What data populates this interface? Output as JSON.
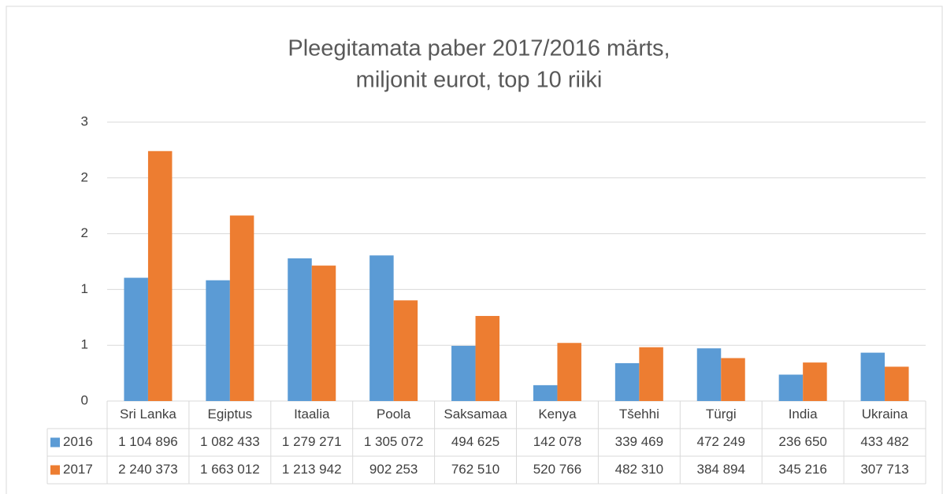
{
  "chart_data": {
    "type": "bar",
    "title": [
      "Pleegitamata paber 2017/2016 märts,",
      "miljonit eurot, top 10 riiki"
    ],
    "categories": [
      "Sri Lanka",
      "Egiptus",
      "Itaalia",
      "Poola",
      "Saksamaa",
      "Kenya",
      "Tšehhi",
      "Türgi",
      "India",
      "Ukraina"
    ],
    "series": [
      {
        "name": "2016",
        "color": "#5b9bd5",
        "values": [
          1.104896,
          1.082433,
          1.279271,
          1.305072,
          0.494625,
          0.142078,
          0.339469,
          0.472249,
          0.23665,
          0.433482
        ],
        "value_labels": [
          "1 104 896",
          "1 082 433",
          "1 279 271",
          "1 305 072",
          "494 625",
          "142 078",
          "339 469",
          "472 249",
          "236 650",
          "433 482"
        ]
      },
      {
        "name": "2017",
        "color": "#ed7d31",
        "values": [
          2.240373,
          1.663012,
          1.213942,
          0.902253,
          0.76251,
          0.520766,
          0.48231,
          0.384894,
          0.345216,
          0.307713
        ],
        "value_labels": [
          "2 240 373",
          "1 663 012",
          "1 213 942",
          "902 253",
          "762 510",
          "520 766",
          "482 310",
          "384 894",
          "345 216",
          "307 713"
        ]
      }
    ],
    "ylim": [
      0,
      2.5
    ],
    "yticks": [
      0,
      {
        "value": 0.5,
        "label": "1"
      },
      1,
      {
        "value": 1.5,
        "label": "2"
      },
      2,
      {
        "value": 2.5,
        "label": "3"
      }
    ],
    "grid": true
  }
}
